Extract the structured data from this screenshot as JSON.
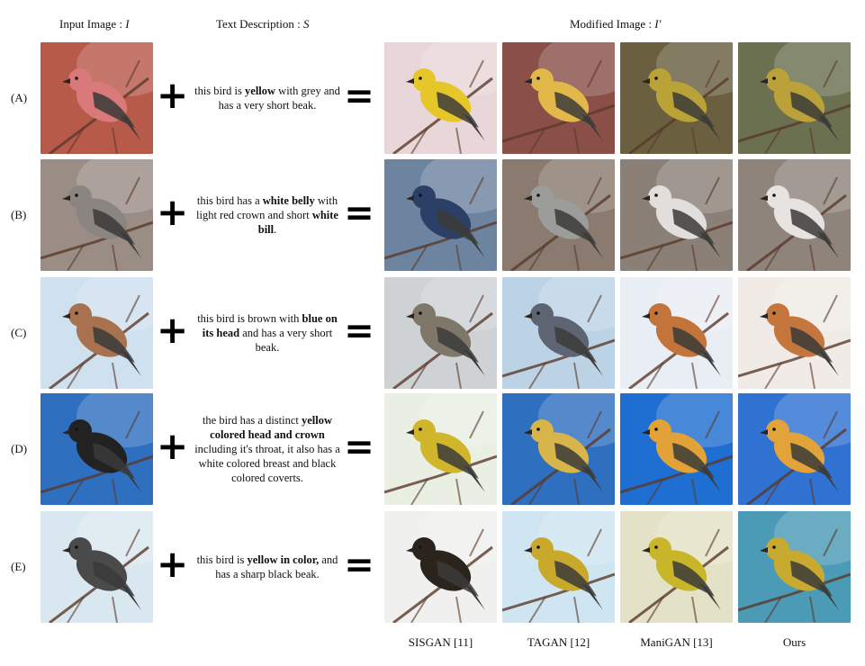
{
  "headers": {
    "input_prefix": "Input Image : ",
    "input_symbol": "I",
    "text_prefix": "Text Description : ",
    "text_symbol": "S",
    "modified_prefix": "Modified Image : ",
    "modified_symbol": "I′"
  },
  "rows": [
    {
      "label": "(A)",
      "desc_parts": [
        {
          "t": "this bird is ",
          "b": false
        },
        {
          "t": "yellow",
          "b": true
        },
        {
          "t": " with grey and has a very short beak.",
          "b": false
        }
      ]
    },
    {
      "label": "(B)",
      "desc_parts": [
        {
          "t": "this bird has a ",
          "b": false
        },
        {
          "t": "white belly",
          "b": true
        },
        {
          "t": " with light red crown and short ",
          "b": false
        },
        {
          "t": "white bill",
          "b": true
        },
        {
          "t": ".",
          "b": false
        }
      ]
    },
    {
      "label": "(C)",
      "desc_parts": [
        {
          "t": "this bird is brown with ",
          "b": false
        },
        {
          "t": "blue on its head",
          "b": true
        },
        {
          "t": " and has a very short beak.",
          "b": false
        }
      ]
    },
    {
      "label": "(D)",
      "desc_parts": [
        {
          "t": "the bird has a distinct ",
          "b": false
        },
        {
          "t": "yellow colored head and crown",
          "b": true
        },
        {
          "t": " including it's throat, it also has a white colored breast and black colored coverts.",
          "b": false
        }
      ]
    },
    {
      "label": "(E)",
      "desc_parts": [
        {
          "t": "this bird is ",
          "b": false
        },
        {
          "t": "yellow in color,",
          "b": true
        },
        {
          "t": " and has a sharp black beak.",
          "b": false
        }
      ]
    }
  ],
  "methods": [
    "SISGAN [11]",
    "TAGAN [12]",
    "ManiGAN [13]",
    "Ours"
  ],
  "symbols": {
    "plus": "+",
    "equals": "="
  },
  "palette": {
    "input": [
      "#b85a4a",
      "#9a8d86",
      "#cfe0ef",
      "#2f6fc0",
      "#d9e8f0"
    ],
    "bird_input": [
      "#d9797a",
      "#8a8580",
      "#a9724f",
      "#222222",
      "#4a4a4a"
    ],
    "bg_sisgan": [
      "#e8d6d8",
      "#6d84a0",
      "#cfd2d5",
      "#e9efe3",
      "#f0f0ee"
    ],
    "bird_sisgan": [
      "#e6c72a",
      "#2c3f66",
      "#7e776a",
      "#d1b52b",
      "#2a241c"
    ],
    "bg_tagan": [
      "#8a5048",
      "#8a7a70",
      "#bcd3e6",
      "#2f6fc0",
      "#cfe6f2"
    ],
    "bird_tagan": [
      "#e2b84a",
      "#9c9c9a",
      "#5d6472",
      "#d7b54a",
      "#c9a92b"
    ],
    "bg_mani": [
      "#6a6040",
      "#8a8078",
      "#e9eef4",
      "#1f6ed1",
      "#e4e2c6"
    ],
    "bird_mani": [
      "#b9a236",
      "#e2dedc",
      "#c3743a",
      "#e2a238",
      "#c9b52a"
    ],
    "bg_ours": [
      "#6a7050",
      "#8f847c",
      "#f0ebe6",
      "#2f72d2",
      "#4b9ab6"
    ],
    "bird_ours": [
      "#bba13a",
      "#e7e3e0",
      "#c4763c",
      "#e1a33a",
      "#c7aa2f"
    ]
  }
}
